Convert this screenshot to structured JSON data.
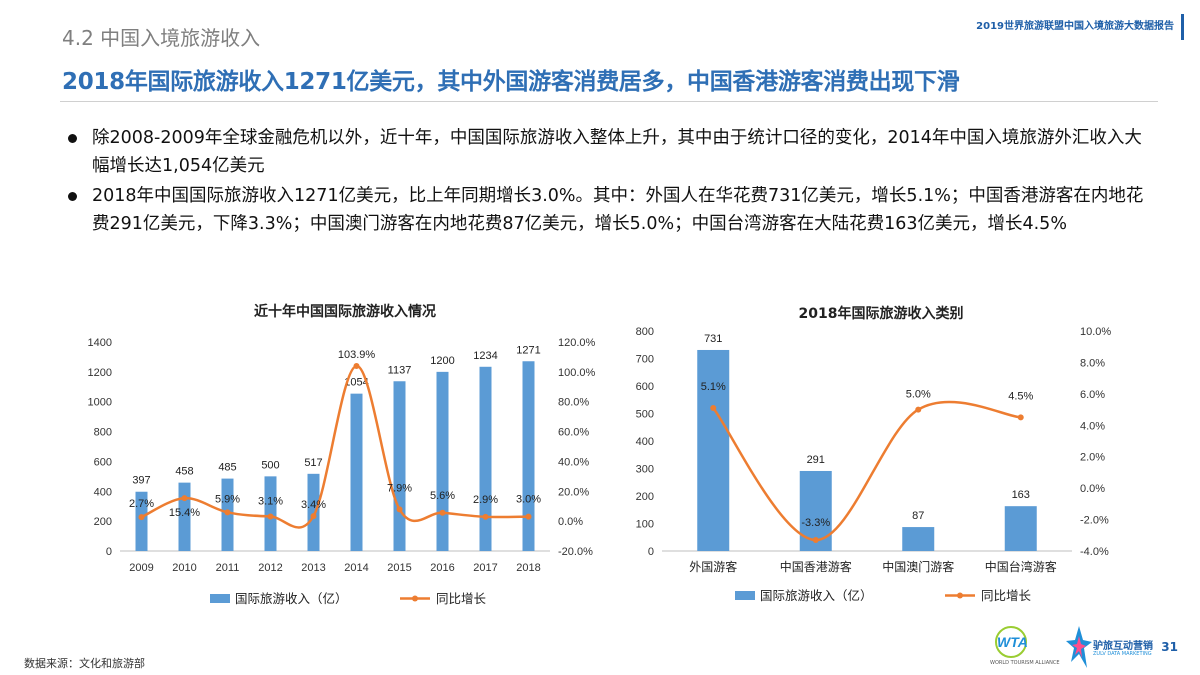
{
  "header": {
    "section_title": "4.2 中国入境旅游收入",
    "report_name": "2019世界旅游联盟中国入境旅游大数据报告",
    "headline": "2018年国际旅游收入1271亿美元，其中外国游客消费居多，中国香港游客消费出现下滑"
  },
  "bullets": [
    "除2008-2009年全球金融危机以外，近十年，中国国际旅游收入整体上升，其中由于统计口径的变化，2014年中国入境旅游外汇收入大幅增长达1,054亿美元",
    "2018年中国国际旅游收入1271亿美元，比上年同期增长3.0%。其中：外国人在华花费731亿美元，增长5.1%；中国香港游客在内地花费291亿美元，下降3.3%；中国澳门游客在内地花费87亿美元，增长5.0%；中国台湾游客在大陆花费163亿美元，增长4.5%"
  ],
  "colors": {
    "bar": "#5b9bd5",
    "line": "#ed7d31",
    "headline": "#2f6fb5"
  },
  "chart_data": [
    {
      "type": "bar",
      "title": "近十年中国国际旅游收入情况",
      "categories": [
        "2009",
        "2010",
        "2011",
        "2012",
        "2013",
        "2014",
        "2015",
        "2016",
        "2017",
        "2018"
      ],
      "series": [
        {
          "name": "国际旅游收入（亿）",
          "type": "bar",
          "axis": "left",
          "values": [
            397,
            458,
            485,
            500,
            517,
            1054,
            1137,
            1200,
            1234,
            1271
          ]
        },
        {
          "name": "同比增长",
          "type": "line",
          "axis": "right",
          "values": [
            2.7,
            15.4,
            5.9,
            3.1,
            3.4,
            103.9,
            7.9,
            5.6,
            2.9,
            3.0
          ],
          "labels": [
            "2.7%",
            "15.4%",
            "5.9%",
            "3.1%",
            "3.4%",
            "103.9%",
            "7.9%",
            "5.6%",
            "2.9%",
            "3.0%"
          ]
        }
      ],
      "ylim_left": [
        0,
        1400
      ],
      "yticks_left": [
        "0",
        "200",
        "400",
        "600",
        "800",
        "1000",
        "1200",
        "1400"
      ],
      "ylim_right": [
        -20,
        120
      ],
      "yticks_right": [
        "-20.0%",
        "0.0%",
        "20.0%",
        "40.0%",
        "60.0%",
        "80.0%",
        "100.0%",
        "120.0%"
      ],
      "legend": "bottom"
    },
    {
      "type": "bar",
      "title": "2018年国际旅游收入类别",
      "categories": [
        "外国游客",
        "中国香港游客",
        "中国澳门游客",
        "中国台湾游客"
      ],
      "series": [
        {
          "name": "国际旅游收入（亿）",
          "type": "bar",
          "axis": "left",
          "values": [
            731,
            291,
            87,
            163
          ]
        },
        {
          "name": "同比增长",
          "type": "line",
          "axis": "right",
          "values": [
            5.1,
            -3.3,
            5.0,
            4.5
          ],
          "labels": [
            "5.1%",
            "-3.3%",
            "5.0%",
            "4.5%"
          ]
        }
      ],
      "ylim_left": [
        0,
        800
      ],
      "yticks_left": [
        "0",
        "100",
        "200",
        "300",
        "400",
        "500",
        "600",
        "700",
        "800"
      ],
      "ylim_right": [
        -4,
        10
      ],
      "yticks_right": [
        "-4.0%",
        "-2.0%",
        "0.0%",
        "2.0%",
        "4.0%",
        "6.0%",
        "8.0%",
        "10.0%"
      ],
      "legend": "bottom"
    }
  ],
  "footer": {
    "source": "数据来源：文化和旅游部",
    "page_number": "31",
    "wta_logo_text": "WTA",
    "wta_caption": "WORLD TOURISM ALLIANCE",
    "zl_logo_text": "驴旅互动营销",
    "zl_logo_sub": "ZULV DATA MARKETING"
  }
}
